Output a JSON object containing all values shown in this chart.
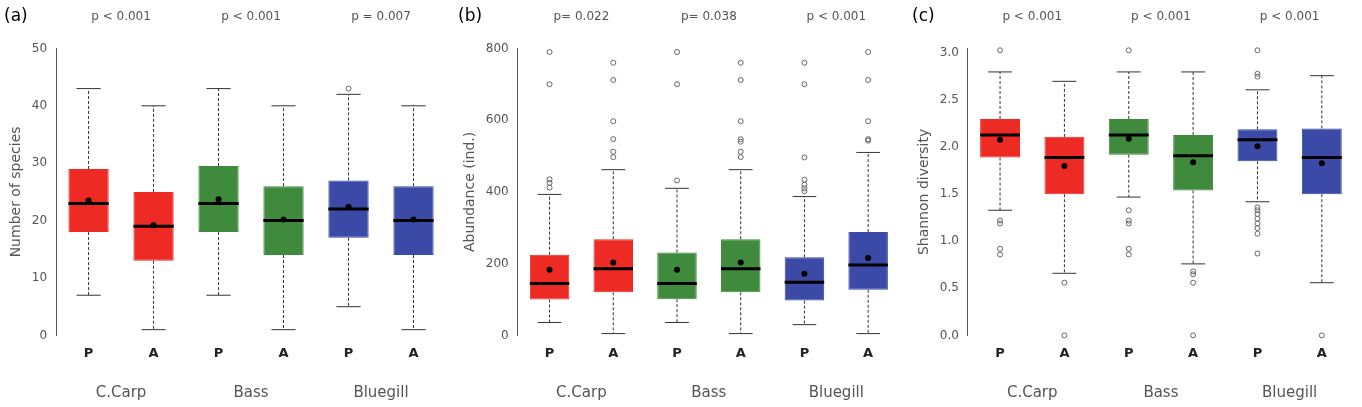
{
  "chart_data": [
    {
      "type": "box",
      "title": "(a)",
      "ylabel": "Number of species",
      "categories": [
        "P",
        "A",
        "P",
        "A",
        "P",
        "A"
      ],
      "colors": [
        "#ee2a24",
        "#ee2a24",
        "#3f8a3c",
        "#3f8a3c",
        "#3a4aa6",
        "#3a4aa6"
      ],
      "boxes": [
        {
          "low": 7,
          "q1": 18,
          "median": 23,
          "q3": 29,
          "high": 43,
          "mean": 23.5
        },
        {
          "low": 1,
          "q1": 13,
          "median": 19,
          "q3": 25,
          "high": 40,
          "mean": 19.2
        },
        {
          "low": 7,
          "q1": 18,
          "median": 23,
          "q3": 29.5,
          "high": 43,
          "mean": 23.7
        },
        {
          "low": 1,
          "q1": 14,
          "median": 20,
          "q3": 26,
          "high": 40,
          "mean": 20.2
        },
        {
          "low": 5,
          "q1": 17,
          "median": 22,
          "q3": 27,
          "high": 42,
          "mean": 22.4,
          "outliers": [
            43
          ]
        },
        {
          "low": 1,
          "q1": 14,
          "median": 20,
          "q3": 26,
          "high": 40,
          "mean": 20.2
        }
      ],
      "ylim": [
        0,
        50
      ],
      "yticks": [
        0,
        10,
        20,
        30,
        40,
        50
      ],
      "grid": false,
      "legend": false,
      "annotations": [
        "p < 0.001",
        "p < 0.001",
        "p = 0.007",
        "C.Carp",
        "Bass",
        "Bluegill"
      ]
    },
    {
      "type": "box",
      "title": "(b)",
      "ylabel": "Abundance (ind.)",
      "categories": [
        "P",
        "A",
        "P",
        "A",
        "P",
        "A"
      ],
      "colors": [
        "#ee2a24",
        "#ee2a24",
        "#3f8a3c",
        "#3f8a3c",
        "#3a4aa6",
        "#3a4aa6"
      ],
      "boxes": [
        {
          "low": 36,
          "q1": 100,
          "median": 145,
          "q3": 225,
          "high": 393,
          "mean": 183,
          "outliers": [
            790,
            700,
            435,
            425,
            412
          ]
        },
        {
          "low": 5,
          "q1": 120,
          "median": 186,
          "q3": 268,
          "high": 462,
          "mean": 203,
          "outliers": [
            760,
            712,
            597,
            547,
            512,
            497
          ]
        },
        {
          "low": 36,
          "q1": 101,
          "median": 145,
          "q3": 231,
          "high": 410,
          "mean": 183,
          "outliers": [
            790,
            700,
            432
          ]
        },
        {
          "low": 5,
          "q1": 120,
          "median": 186,
          "q3": 268,
          "high": 462,
          "mean": 203,
          "outliers": [
            760,
            712,
            597,
            547,
            540,
            512,
            497
          ]
        },
        {
          "low": 30,
          "q1": 97,
          "median": 148,
          "q3": 218,
          "high": 387,
          "mean": 172,
          "outliers": [
            760,
            700,
            496,
            434,
            420,
            410,
            402
          ]
        },
        {
          "low": 5,
          "q1": 127,
          "median": 196,
          "q3": 288,
          "high": 510,
          "mean": 216,
          "outliers": [
            790,
            712,
            597,
            547,
            543
          ]
        }
      ],
      "ylim": [
        0,
        800
      ],
      "yticks": [
        0,
        200,
        400,
        600,
        800
      ],
      "grid": false,
      "legend": false,
      "annotations": [
        "p= 0.022",
        "p= 0.038",
        "p < 0.001",
        "C.Carp",
        "Bass",
        "Bluegill"
      ]
    },
    {
      "type": "box",
      "title": "(c)",
      "ylabel": "Shannon diversity",
      "categories": [
        "P",
        "A",
        "P",
        "A",
        "P",
        "A"
      ],
      "colors": [
        "#ee2a24",
        "#ee2a24",
        "#3f8a3c",
        "#3f8a3c",
        "#3a4aa6",
        "#3a4aa6"
      ],
      "boxes": [
        {
          "low": 1.33,
          "q1": 1.89,
          "median": 2.13,
          "q3": 2.3,
          "high": 2.8,
          "mean": 2.08,
          "outliers": [
            3.03,
            1.22,
            1.19,
            0.92,
            0.86
          ]
        },
        {
          "low": 0.66,
          "q1": 1.5,
          "median": 1.89,
          "q3": 2.11,
          "high": 2.7,
          "mean": 1.8,
          "outliers": [
            0.56,
            0
          ]
        },
        {
          "low": 1.47,
          "q1": 1.92,
          "median": 2.13,
          "q3": 2.3,
          "high": 2.8,
          "mean": 2.09,
          "outliers": [
            3.03,
            1.33,
            1.22,
            1.19,
            0.92,
            0.86
          ]
        },
        {
          "low": 0.76,
          "q1": 1.54,
          "median": 1.91,
          "q3": 2.13,
          "high": 2.8,
          "mean": 1.84,
          "outliers": [
            0.68,
            0.65,
            0.56,
            0
          ]
        },
        {
          "low": 1.42,
          "q1": 1.85,
          "median": 2.08,
          "q3": 2.19,
          "high": 2.61,
          "mean": 2.01,
          "outliers": [
            3.03,
            2.78,
            2.75,
            1.36,
            1.33,
            1.29,
            1.24,
            1.19,
            1.14,
            1.08,
            0.87
          ]
        },
        {
          "low": 0.56,
          "q1": 1.5,
          "median": 1.89,
          "q3": 2.2,
          "high": 2.76,
          "mean": 1.83,
          "outliers": [
            0
          ]
        }
      ],
      "ylim": [
        0,
        3.05
      ],
      "yticks": [
        {
          "value": 0,
          "label": "0.0"
        },
        0.5,
        {
          "value": 1,
          "label": "1.0"
        },
        1.5,
        {
          "value": 2,
          "label": "2.0"
        },
        2.5,
        {
          "value": 3,
          "label": "3.0"
        }
      ],
      "grid": false,
      "legend": false,
      "annotations": [
        "p < 0.001",
        "p < 0.001",
        "p < 0.001",
        "C.Carp",
        "Bass",
        "Bluegill"
      ]
    }
  ]
}
